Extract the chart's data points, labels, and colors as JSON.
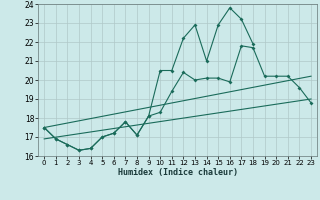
{
  "title": "",
  "xlabel": "Humidex (Indice chaleur)",
  "background_color": "#cce9e9",
  "grid_color": "#b0c8c8",
  "line_color": "#1a6b5a",
  "xlim": [
    -0.5,
    23.5
  ],
  "ylim": [
    16,
    24
  ],
  "xticks": [
    0,
    1,
    2,
    3,
    4,
    5,
    6,
    7,
    8,
    9,
    10,
    11,
    12,
    13,
    14,
    15,
    16,
    17,
    18,
    19,
    20,
    21,
    22,
    23
  ],
  "yticks": [
    16,
    17,
    18,
    19,
    20,
    21,
    22,
    23,
    24
  ],
  "series1_x": [
    0,
    1,
    2,
    3,
    4,
    5,
    6,
    7,
    8,
    9,
    10,
    11,
    12,
    13,
    14,
    15,
    16,
    17,
    18,
    19,
    20,
    21,
    22,
    23
  ],
  "series1_y": [
    17.5,
    16.9,
    16.6,
    16.3,
    16.4,
    17.0,
    17.2,
    17.8,
    17.1,
    18.1,
    18.3,
    19.4,
    20.4,
    20.0,
    20.1,
    20.1,
    19.9,
    21.8,
    21.7,
    20.2,
    20.2,
    20.2,
    19.6,
    18.8
  ],
  "series2_x": [
    0,
    1,
    2,
    3,
    4,
    5,
    6,
    7,
    8,
    9,
    10,
    11,
    12,
    13,
    14,
    15,
    16,
    17,
    18
  ],
  "series2_y": [
    17.5,
    16.9,
    16.6,
    16.3,
    16.4,
    17.0,
    17.2,
    17.8,
    17.1,
    18.1,
    20.5,
    20.5,
    22.2,
    22.9,
    21.0,
    22.9,
    23.8,
    23.2,
    21.9
  ],
  "series3_x": [
    0,
    23
  ],
  "series3_y": [
    16.9,
    19.0
  ],
  "series4_x": [
    0,
    23
  ],
  "series4_y": [
    17.5,
    20.2
  ]
}
